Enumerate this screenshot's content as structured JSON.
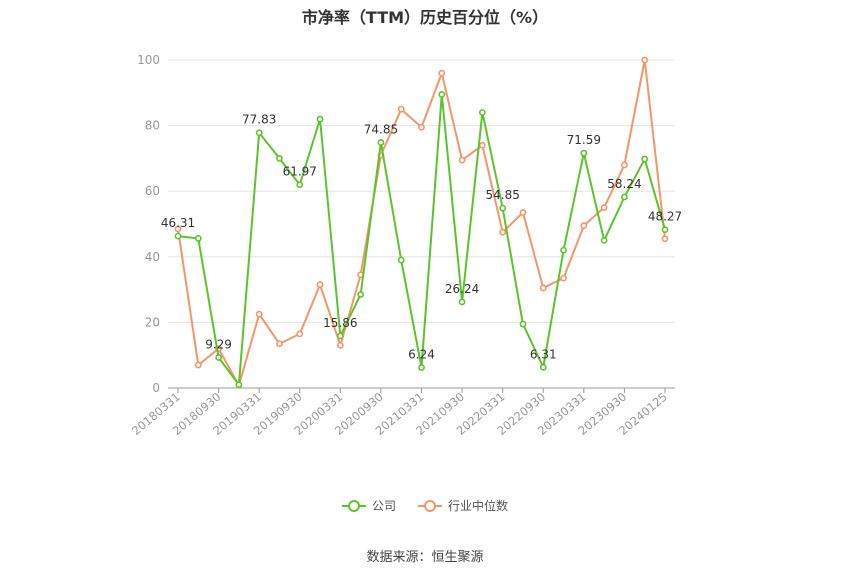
{
  "title": "市净率（TTM）历史百分位（%）",
  "source": "数据来源：恒生聚源",
  "legend": {
    "company_label": "公司",
    "industry_label": "行业中位数"
  },
  "colors": {
    "company": "#5cc42b",
    "industry": "#f5956a",
    "axis": "#999999",
    "grid": "#e6e6e6",
    "tick_text": "#999999"
  },
  "chart_data": {
    "type": "line",
    "title": "市净率（TTM）历史百分位（%）",
    "xlabel": "",
    "ylabel": "",
    "ylim": [
      0,
      100
    ],
    "yticks": [
      0,
      20,
      40,
      60,
      80,
      100
    ],
    "grid": true,
    "legend_position": "bottom",
    "x": [
      "20180331",
      "20180630",
      "20180930",
      "20181231",
      "20190331",
      "20190630",
      "20190930",
      "20191231",
      "20200331",
      "20200630",
      "20200930",
      "20201231",
      "20210331",
      "20210630",
      "20210930",
      "20211231",
      "20220331",
      "20220630",
      "20220930",
      "20221231",
      "20230331",
      "20230630",
      "20230930",
      "20231231",
      "20240125"
    ],
    "xtick_labels": [
      "20180331",
      "20180930",
      "20190331",
      "20190930",
      "20200331",
      "20200930",
      "20210331",
      "20210930",
      "20220331",
      "20220930",
      "20230331",
      "20230930",
      "20240125"
    ],
    "series": [
      {
        "name": "公司",
        "values": [
          46.31,
          45.6,
          9.29,
          1.0,
          77.83,
          70.0,
          61.97,
          82.0,
          15.86,
          28.5,
          74.85,
          39.0,
          6.24,
          89.5,
          26.24,
          84.0,
          54.85,
          19.5,
          6.31,
          42.0,
          71.59,
          45.0,
          58.24,
          69.8,
          48.27
        ],
        "labels": [
          "46.31",
          "",
          "9.29",
          "",
          "77.83",
          "",
          "61.97",
          "",
          "15.86",
          "",
          "74.85",
          "",
          "6.24",
          "",
          "26.24",
          "",
          "54.85",
          "",
          "6.31",
          "",
          "71.59",
          "",
          "58.24",
          "",
          "48.27"
        ]
      },
      {
        "name": "行业中位数",
        "values": [
          48.5,
          7.0,
          12.0,
          0.8,
          22.5,
          13.5,
          16.5,
          31.5,
          13.0,
          34.5,
          71.0,
          85.0,
          79.5,
          96.0,
          69.5,
          74.0,
          47.5,
          53.5,
          30.5,
          33.5,
          49.5,
          55.0,
          68.0,
          100.0,
          45.5
        ]
      }
    ]
  }
}
